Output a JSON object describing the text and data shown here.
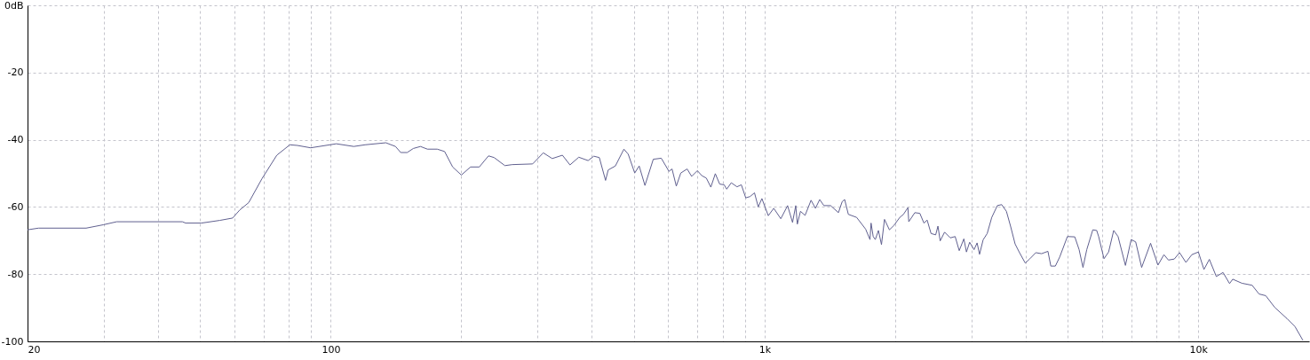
{
  "chart_data": {
    "type": "line",
    "log": "x",
    "grid": true,
    "xlim": [
      20,
      18000
    ],
    "ylim": [
      -100,
      0
    ],
    "xticks": [
      20,
      {
        "value": 30,
        "label": null
      },
      {
        "value": 40,
        "label": null
      },
      {
        "value": 50,
        "label": null
      },
      {
        "value": 60,
        "label": null
      },
      {
        "value": 70,
        "label": null
      },
      {
        "value": 80,
        "label": null
      },
      {
        "value": 90,
        "label": null
      },
      100,
      {
        "value": 200,
        "label": null
      },
      {
        "value": 300,
        "label": null
      },
      {
        "value": 400,
        "label": null
      },
      {
        "value": 500,
        "label": null
      },
      {
        "value": 600,
        "label": null
      },
      {
        "value": 700,
        "label": null
      },
      {
        "value": 800,
        "label": null
      },
      {
        "value": 900,
        "label": null
      },
      {
        "value": 1000,
        "label": "1k"
      },
      {
        "value": 2000,
        "label": null
      },
      {
        "value": 3000,
        "label": null
      },
      {
        "value": 4000,
        "label": null
      },
      {
        "value": 5000,
        "label": null
      },
      {
        "value": 6000,
        "label": null
      },
      {
        "value": 7000,
        "label": null
      },
      {
        "value": 8000,
        "label": null
      },
      {
        "value": 9000,
        "label": null
      },
      {
        "value": 10000,
        "label": "10k"
      }
    ],
    "yticks": [
      {
        "value": 0,
        "label": "0dB"
      },
      -20,
      -40,
      -60,
      -80,
      -100
    ],
    "x": [
      20,
      21.2,
      27.3,
      29.9,
      32.1,
      45.5,
      46.3,
      50.3,
      55.5,
      59.4,
      61.7,
      64.7,
      69.4,
      75.1,
      80.5,
      83.8,
      89.9,
      103,
      113,
      120,
      134,
      141,
      145,
      150,
      155,
      161,
      167,
      176,
      183,
      191,
      200,
      210,
      220,
      231,
      238,
      252,
      262,
      292,
      309,
      324,
      342,
      356,
      373,
      392,
      404,
      416,
      430,
      436,
      453,
      474,
      485,
      502,
      514,
      530,
      554,
      578,
      602,
      612,
      626,
      641,
      663,
      679,
      700,
      717,
      734,
      752,
      770,
      788,
      807,
      818,
      838,
      864,
      884,
      905,
      926,
      948,
      967,
      986,
      1020,
      1050,
      1090,
      1130,
      1160,
      1180,
      1190,
      1210,
      1240,
      1280,
      1310,
      1340,
      1370,
      1420,
      1480,
      1510,
      1530,
      1560,
      1630,
      1710,
      1750,
      1760,
      1780,
      1800,
      1830,
      1860,
      1890,
      1940,
      1990,
      2050,
      2090,
      2140,
      2150,
      2220,
      2280,
      2330,
      2370,
      2420,
      2480,
      2510,
      2540,
      2600,
      2680,
      2750,
      2810,
      2880,
      2920,
      2970,
      3040,
      3090,
      3130,
      3190,
      3260,
      3340,
      3440,
      3520,
      3610,
      3690,
      3780,
      3870,
      3990,
      4090,
      4220,
      4350,
      4500,
      4570,
      4680,
      4790,
      4990,
      5190,
      5310,
      5420,
      5530,
      5710,
      5830,
      5890,
      6060,
      6210,
      6380,
      6530,
      6790,
      7000,
      7170,
      7400,
      7760,
      8070,
      8330,
      8530,
      8800,
      9050,
      9360,
      9660,
      10000,
      10300,
      10600,
      11000,
      11400,
      11800,
      12000,
      12600,
      13300,
      13800,
      14300,
      15000,
      16000,
      16700,
      17400
    ],
    "series": [
      {
        "color": "#60608f",
        "values": [
          -66.8,
          -66.3,
          -66.3,
          -65.3,
          -64.4,
          -64.4,
          -64.8,
          -64.8,
          -64.0,
          -63.3,
          -60.9,
          -58.7,
          -51.6,
          -44.6,
          -41.5,
          -41.7,
          -42.4,
          -41.2,
          -42.0,
          -41.5,
          -40.9,
          -42.0,
          -43.8,
          -43.8,
          -42.6,
          -42.0,
          -42.8,
          -42.8,
          -43.5,
          -48.1,
          -50.5,
          -48.1,
          -48.1,
          -44.8,
          -45.3,
          -47.7,
          -47.4,
          -47.2,
          -43.9,
          -45.6,
          -44.6,
          -47.5,
          -45.2,
          -46.2,
          -44.9,
          -45.3,
          -52.1,
          -49.0,
          -47.8,
          -42.8,
          -44.3,
          -49.9,
          -47.8,
          -53.6,
          -45.8,
          -45.5,
          -49.4,
          -48.7,
          -53.8,
          -49.9,
          -48.7,
          -50.9,
          -49.2,
          -50.7,
          -51.4,
          -54.1,
          -50.1,
          -53.2,
          -53.4,
          -54.7,
          -52.8,
          -54.0,
          -53.4,
          -57.3,
          -56.9,
          -55.8,
          -60.0,
          -57.5,
          -62.6,
          -60.4,
          -63.5,
          -59.6,
          -64.6,
          -59.6,
          -65.1,
          -61.3,
          -62.5,
          -58.0,
          -60.4,
          -57.8,
          -59.6,
          -59.6,
          -61.7,
          -58.4,
          -57.8,
          -62.2,
          -63.1,
          -66.6,
          -69.7,
          -64.8,
          -68.8,
          -69.7,
          -67.0,
          -71.2,
          -63.7,
          -66.8,
          -65.4,
          -63.1,
          -62.2,
          -60.2,
          -64.4,
          -61.7,
          -61.9,
          -64.8,
          -63.9,
          -67.9,
          -68.3,
          -65.7,
          -70.1,
          -67.5,
          -69.2,
          -68.8,
          -73.0,
          -69.5,
          -73.4,
          -70.5,
          -72.7,
          -70.7,
          -74.1,
          -69.8,
          -67.9,
          -63.1,
          -59.6,
          -59.3,
          -61.3,
          -65.7,
          -71.0,
          -73.6,
          -76.7,
          -75.4,
          -73.6,
          -73.9,
          -73.2,
          -77.6,
          -77.6,
          -74.9,
          -68.8,
          -68.9,
          -72.7,
          -78.0,
          -72.7,
          -66.8,
          -67.0,
          -68.8,
          -75.4,
          -73.4,
          -67.0,
          -68.8,
          -77.4,
          -69.7,
          -70.4,
          -78.0,
          -70.8,
          -77.3,
          -74.2,
          -75.8,
          -75.5,
          -73.6,
          -76.5,
          -74.2,
          -73.4,
          -78.6,
          -75.6,
          -80.7,
          -79.5,
          -82.8,
          -81.5,
          -82.7,
          -83.3,
          -85.9,
          -86.4,
          -89.9,
          -93.2,
          -95.6,
          -99.6
        ]
      }
    ]
  }
}
